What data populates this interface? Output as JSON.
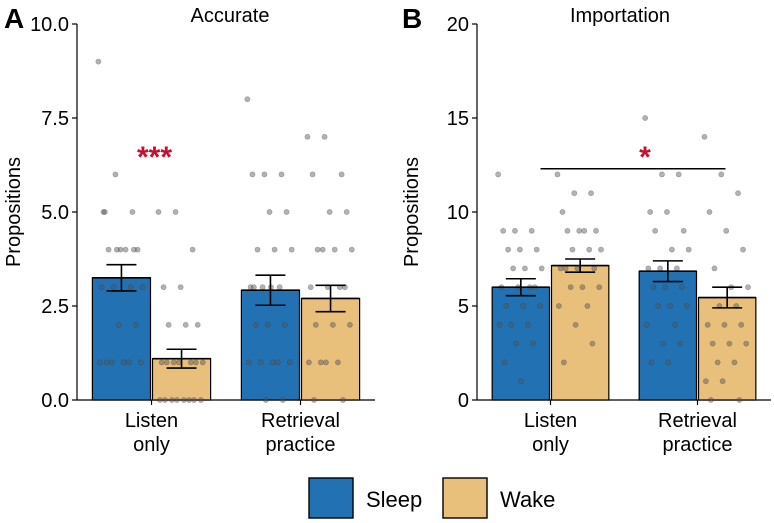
{
  "colors": {
    "sleep": "#2271b2",
    "wake": "#e8c07c",
    "significance": "#c8102e",
    "dot": "#555555"
  },
  "legend": {
    "items": [
      {
        "name": "Sleep",
        "color": "#2271b2"
      },
      {
        "name": "Wake",
        "color": "#e8c07c"
      }
    ]
  },
  "chart_data": [
    {
      "panel": "A",
      "title": "Accurate",
      "type": "bar",
      "ylabel": "Propositions",
      "ylim": [
        0,
        10
      ],
      "yticks": [
        "0.0",
        "2.5",
        "5.0",
        "7.5",
        "10.0"
      ],
      "ytick_values": [
        0,
        2.5,
        5,
        7.5,
        10
      ],
      "categories": [
        [
          "Listen",
          "only"
        ],
        [
          "Retrieval",
          "practice"
        ]
      ],
      "series": [
        {
          "name": "Sleep",
          "values": [
            3.25,
            2.92
          ],
          "errors": [
            0.35,
            0.4
          ],
          "points": [
            [
              9,
              6,
              5,
              5,
              4,
              4,
              4,
              4,
              3,
              3,
              3,
              3,
              2,
              2,
              1,
              1,
              1,
              1,
              1,
              1,
              4,
              4,
              5
            ],
            [
              8,
              6,
              6,
              6,
              5,
              5,
              4,
              4,
              4,
              3,
              3,
              3,
              2,
              2,
              2,
              1,
              1,
              1,
              1,
              1,
              0,
              0,
              3,
              3
            ]
          ]
        },
        {
          "name": "Wake",
          "values": [
            1.1,
            2.7
          ],
          "errors": [
            0.25,
            0.35
          ],
          "points": [
            [
              5,
              5,
              4,
              3,
              3,
              2,
              2,
              2,
              1,
              1,
              1,
              1,
              1,
              1,
              1,
              0,
              0,
              0,
              0,
              0,
              0,
              0,
              0
            ],
            [
              7,
              7,
              6,
              6,
              5,
              5,
              4,
              4,
              4,
              4,
              3,
              3,
              3,
              3,
              2,
              2,
              2,
              1,
              1,
              1,
              1,
              0,
              0
            ]
          ]
        }
      ],
      "annotations": [
        {
          "text": "***",
          "category": 0
        }
      ]
    },
    {
      "panel": "B",
      "title": "Importation",
      "type": "bar",
      "ylabel": "Propositions",
      "ylim": [
        0,
        20
      ],
      "yticks": [
        "0",
        "5",
        "10",
        "15",
        "20"
      ],
      "ytick_values": [
        0,
        5,
        10,
        15,
        20
      ],
      "categories": [
        [
          "Listen",
          "only"
        ],
        [
          "Retrieval",
          "practice"
        ]
      ],
      "series": [
        {
          "name": "Sleep",
          "values": [
            6.0,
            6.85
          ],
          "errors": [
            0.45,
            0.55
          ],
          "points": [
            [
              12,
              9,
              9,
              9,
              8,
              8,
              8,
              7,
              7,
              7,
              6,
              6,
              6,
              6,
              5,
              5,
              5,
              4,
              4,
              4,
              3,
              3,
              2,
              1
            ],
            [
              15,
              12,
              12,
              10,
              10,
              9,
              9,
              8,
              8,
              7,
              7,
              7,
              6,
              6,
              6,
              5,
              5,
              5,
              4,
              4,
              3,
              3,
              2,
              2
            ]
          ]
        },
        {
          "name": "Wake",
          "values": [
            7.15,
            5.45
          ],
          "errors": [
            0.35,
            0.55
          ],
          "points": [
            [
              12,
              11,
              11,
              10,
              9,
              9,
              9,
              9,
              8,
              8,
              8,
              7,
              7,
              7,
              7,
              6,
              6,
              6,
              5,
              5,
              4,
              3,
              2
            ],
            [
              14,
              12,
              11,
              10,
              9,
              8,
              7,
              6,
              6,
              5,
              5,
              4,
              4,
              4,
              3,
              3,
              3,
              2,
              2,
              1,
              1,
              0,
              0
            ]
          ]
        }
      ],
      "annotations": [
        {
          "text": "*",
          "from_category": 0,
          "to_category": 1,
          "y": 12.3
        }
      ]
    }
  ]
}
